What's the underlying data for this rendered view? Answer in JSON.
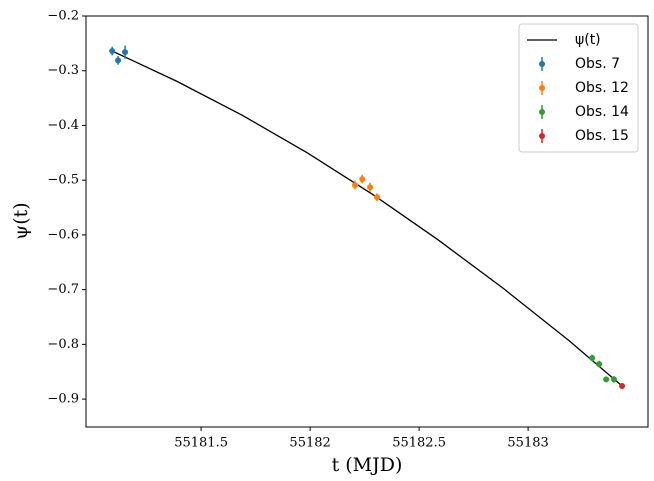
{
  "chart_data": {
    "type": "scatter",
    "x_label": "t (MJD)",
    "y_label": "ψ(t)",
    "xlim": [
      55180.972,
      55183.55
    ],
    "ylim": [
      -0.951,
      -0.2
    ],
    "xticks": [
      55181.5,
      55182.0,
      55182.5,
      55183.0
    ],
    "yticks": [
      {
        "value": -0.2,
        "label": "−0.2"
      },
      {
        "value": -0.3,
        "label": "−0.3"
      },
      {
        "value": -0.4,
        "label": "−0.4"
      },
      {
        "value": -0.5,
        "label": "−0.5"
      },
      {
        "value": -0.6,
        "label": "−0.6"
      },
      {
        "value": -0.7,
        "label": "−0.7"
      },
      {
        "value": -0.8,
        "label": "−0.8"
      },
      {
        "value": -0.9,
        "label": "−0.9"
      }
    ],
    "legend": "upper right",
    "series": [
      {
        "name": "ψ(t)",
        "type": "line",
        "color": "#000000",
        "x": [
          55181.087,
          55181.387,
          55181.687,
          55181.987,
          55182.287,
          55182.587,
          55182.887,
          55183.187,
          55183.431
        ],
        "values": [
          -0.263,
          -0.319,
          -0.381,
          -0.45,
          -0.526,
          -0.609,
          -0.698,
          -0.793,
          -0.876
        ]
      },
      {
        "name": "Obs. 7",
        "type": "errorbar",
        "color": "#1f77b4",
        "x": [
          55181.092,
          55181.119,
          55181.151
        ],
        "values": [
          -0.264,
          -0.281,
          -0.266
        ],
        "errors": [
          0.008,
          0.008,
          0.012
        ]
      },
      {
        "name": "Obs. 12",
        "type": "errorbar",
        "color": "#ff7f0e",
        "x": [
          55182.206,
          55182.239,
          55182.275,
          55182.307
        ],
        "values": [
          -0.509,
          -0.498,
          -0.513,
          -0.531
        ],
        "errors": [
          0.008,
          0.008,
          0.008,
          0.007
        ]
      },
      {
        "name": "Obs. 14",
        "type": "errorbar",
        "color": "#2ca02c",
        "x": [
          55183.294,
          55183.326,
          55183.358,
          55183.394
        ],
        "values": [
          -0.825,
          -0.836,
          -0.864,
          -0.864
        ],
        "errors": [
          0.006,
          0.006,
          0.005,
          0.006
        ]
      },
      {
        "name": "Obs. 15",
        "type": "errorbar",
        "color": "#d62728",
        "x": [
          55183.431
        ],
        "values": [
          -0.876
        ],
        "errors": [
          0.005
        ]
      }
    ]
  }
}
